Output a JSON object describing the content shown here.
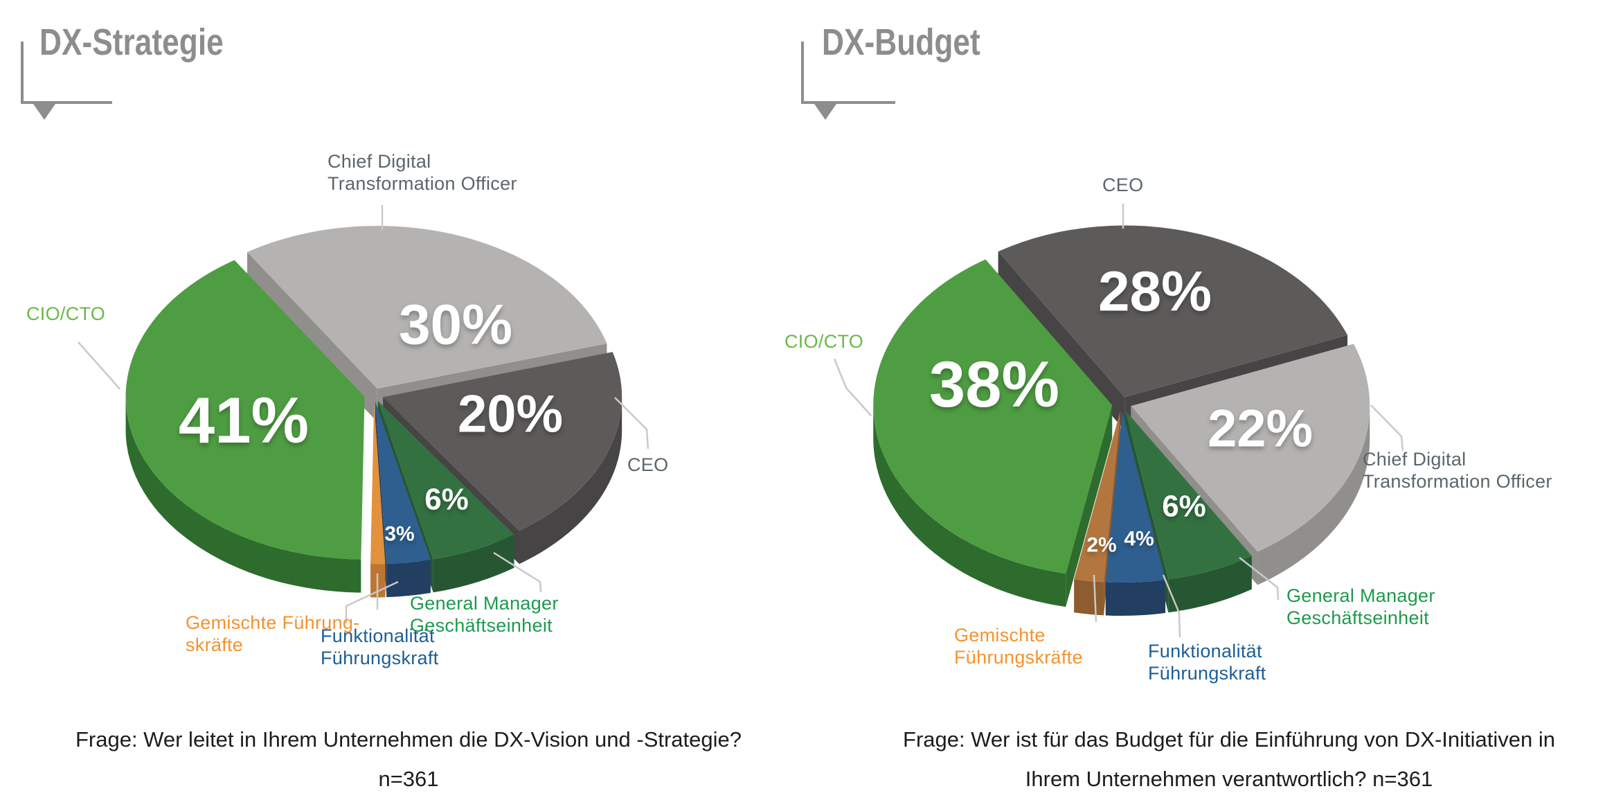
{
  "theme": {
    "background": "#ffffff",
    "title_color": "#8d8d8d",
    "caption_color": "#1c1c1c",
    "leader_line_color": "#c9c9c9",
    "percent_text_color": "#ffffff"
  },
  "chart_data": [
    {
      "type": "pie",
      "title": "DX-Strategie",
      "caption_lines": [
        "Frage: Wer leitet in Ihrem Unternehmen die DX-Vision und -Strategie?",
        "n=361"
      ],
      "legend_position": "around",
      "slices": [
        {
          "id": "cdto",
          "label_lines": [
            "Chief Digital",
            "Transformation Officer"
          ],
          "value": 30,
          "value_label": "30%",
          "color_top": "#b4b3b1",
          "color_side": "#918f8c",
          "label_color": "#5a666b"
        },
        {
          "id": "ceo",
          "label_lines": [
            "CEO"
          ],
          "value": 20,
          "value_label": "20%",
          "color_top": "#5d5a5a",
          "color_side": "#464444",
          "label_color": "#5a666b"
        },
        {
          "id": "gm",
          "label_lines": [
            "General Manager",
            "Geschäftseinheit"
          ],
          "value": 6,
          "value_label": "6%",
          "color_top": "#347141",
          "color_side": "#275732",
          "label_color": "#1d9a4d"
        },
        {
          "id": "funkt",
          "label_lines": [
            "Funktionalität",
            "Führungskraft"
          ],
          "value": 3,
          "value_label": "3%",
          "color_top": "#2e5f8f",
          "color_side": "#223f62",
          "label_color": "#1e5e95"
        },
        {
          "id": "gem",
          "label_lines": [
            "Gemischte Führung-",
            "skräfte"
          ],
          "value": null,
          "weight_pct": 1,
          "value_label": "",
          "color_top": "#e2913d",
          "color_side": "#bd7530",
          "label_color": "#f4932d"
        },
        {
          "id": "cio",
          "label_lines": [
            "CIO/CTO"
          ],
          "value": 41,
          "value_label": "41%",
          "color_top": "#4f9d42",
          "color_side": "#2d6c2d",
          "label_color": "#6ab947"
        }
      ]
    },
    {
      "type": "pie",
      "title": "DX-Budget",
      "caption_lines": [
        "Frage: Wer ist für das Budget für die Einführung von DX-Initiativen in",
        "Ihrem Unternehmen verantwortlich? n=361"
      ],
      "legend_position": "around",
      "slices": [
        {
          "id": "ceo",
          "label_lines": [
            "CEO"
          ],
          "value": 28,
          "value_label": "28%",
          "color_top": "#5d5a5a",
          "color_side": "#464444",
          "label_color": "#5a666b"
        },
        {
          "id": "cdto",
          "label_lines": [
            "Chief Digital",
            "Transformation Officer"
          ],
          "value": 22,
          "value_label": "22%",
          "color_top": "#b4b3b1",
          "color_side": "#918f8c",
          "label_color": "#5a666b"
        },
        {
          "id": "gm",
          "label_lines": [
            "General Manager",
            "Geschäftseinheit"
          ],
          "value": 6,
          "value_label": "6%",
          "color_top": "#347141",
          "color_side": "#275732",
          "label_color": "#1d9a4d"
        },
        {
          "id": "funkt",
          "label_lines": [
            "Funktionalität",
            "Führungskraft"
          ],
          "value": 4,
          "value_label": "4%",
          "color_top": "#2e5f8f",
          "color_side": "#223f62",
          "label_color": "#1e5e95"
        },
        {
          "id": "gem",
          "label_lines": [
            "Gemischte",
            "Führungskräfte"
          ],
          "value": 2,
          "value_label": "2%",
          "color_top": "#b3763e",
          "color_side": "#8e5c2e",
          "label_color": "#f4932d"
        },
        {
          "id": "cio",
          "label_lines": [
            "CIO/CTO"
          ],
          "value": 38,
          "value_label": "38%",
          "color_top": "#4f9d42",
          "color_side": "#2d6c2d",
          "label_color": "#6ab947"
        }
      ]
    }
  ]
}
